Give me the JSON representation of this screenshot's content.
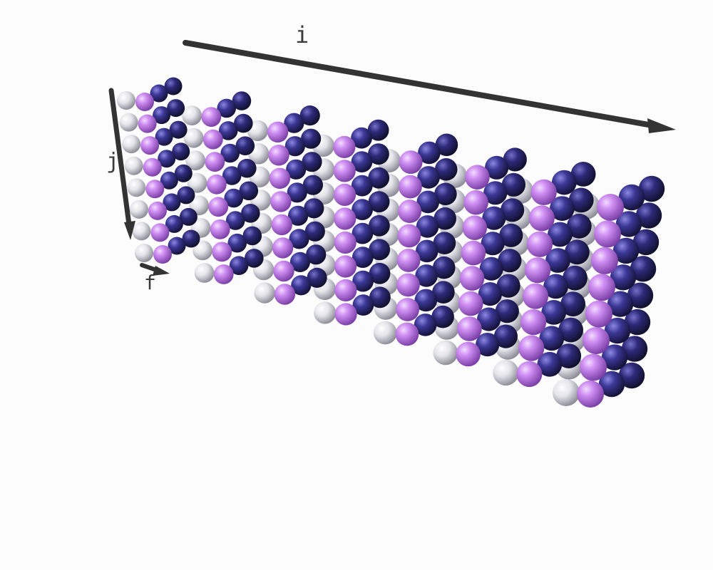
{
  "diagram": {
    "title": "",
    "axes": {
      "i": "i",
      "j": "j",
      "f": "f"
    },
    "grid": {
      "slices_i": 8,
      "rows_j": 8,
      "depth_f": 4
    },
    "layer_colors": [
      "#c887ee",
      "#e6e6ec",
      "#3a3690",
      "#302c7c"
    ],
    "layer_names": [
      "front-layer",
      "white-layer",
      "blue-layer",
      "back-blue-layer"
    ]
  }
}
